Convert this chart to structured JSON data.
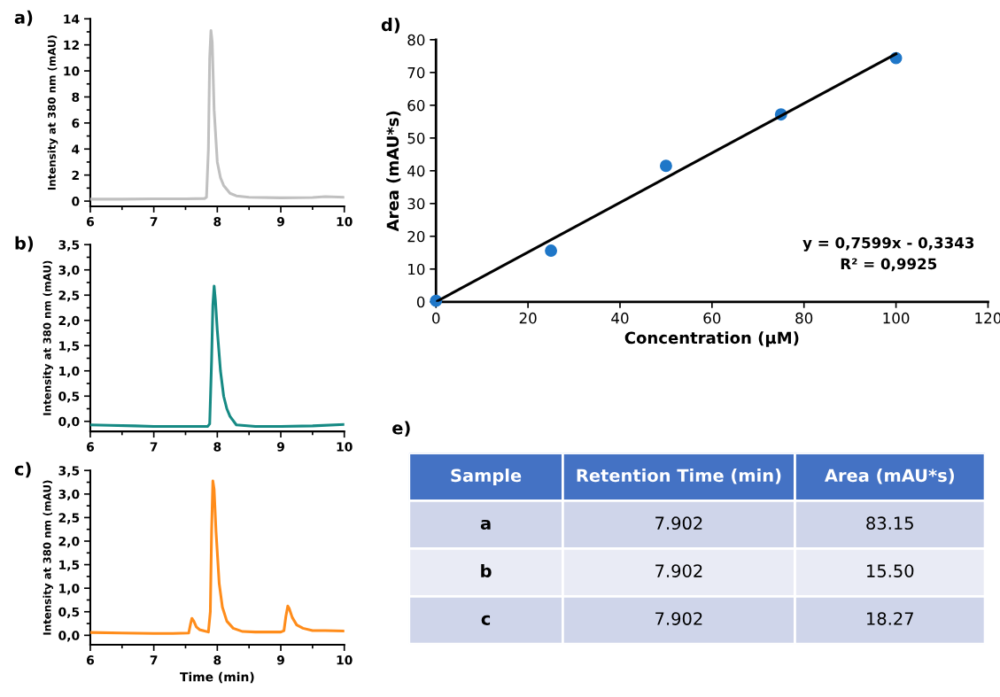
{
  "chart_data": [
    {
      "type": "line",
      "title": "a)",
      "ylabel": "Intensity at 380 nm (mAU)",
      "xlim": [
        6,
        10
      ],
      "ylim": [
        -0.4,
        14
      ],
      "xticks": [
        6,
        7,
        8,
        9,
        10
      ],
      "yticks": [
        0,
        2,
        4,
        6,
        8,
        10,
        12,
        14
      ],
      "series": [
        {
          "color": "#c0c0c0",
          "x": [
            6,
            6.5,
            7,
            7.5,
            7.8,
            7.83,
            7.86,
            7.88,
            7.9,
            7.92,
            7.95,
            8.0,
            8.05,
            8.1,
            8.2,
            8.3,
            8.5,
            9,
            9.5,
            9.7,
            10
          ],
          "values": [
            0.15,
            0.15,
            0.17,
            0.18,
            0.2,
            0.3,
            4,
            11,
            13.1,
            12.2,
            7,
            3,
            1.8,
            1.2,
            0.6,
            0.4,
            0.3,
            0.25,
            0.28,
            0.35,
            0.3
          ]
        }
      ]
    },
    {
      "type": "line",
      "title": "b)",
      "ylabel": "Intensity at 380 nm (mAU)",
      "xlim": [
        6,
        10
      ],
      "ylim": [
        -0.2,
        3.5
      ],
      "xticks": [
        6,
        7,
        8,
        9,
        10
      ],
      "yticks": [
        {
          "value": 0,
          "label": "0,0"
        },
        {
          "value": 0.5,
          "label": "0,5"
        },
        {
          "value": 1,
          "label": "1,0"
        },
        {
          "value": 1.5,
          "label": "1,5"
        },
        {
          "value": 2,
          "label": "2,0"
        },
        {
          "value": 2.5,
          "label": "2,5"
        },
        {
          "value": 3,
          "label": "3,0"
        },
        {
          "value": 3.5,
          "label": "3,5"
        }
      ],
      "series": [
        {
          "color": "#168a84",
          "x": [
            6,
            6.3,
            6.7,
            7,
            7.5,
            7.85,
            7.88,
            7.91,
            7.93,
            7.95,
            7.97,
            8.0,
            8.05,
            8.1,
            8.15,
            8.2,
            8.3,
            8.6,
            9,
            9.5,
            10
          ],
          "values": [
            -0.07,
            -0.08,
            -0.09,
            -0.1,
            -0.1,
            -0.1,
            -0.05,
            1.2,
            2.3,
            2.68,
            2.4,
            1.8,
            1.0,
            0.5,
            0.25,
            0.1,
            -0.07,
            -0.1,
            -0.1,
            -0.09,
            -0.06
          ]
        }
      ]
    },
    {
      "type": "line",
      "title": "c)",
      "xlabel": "Time (min)",
      "ylabel": "Intensity at 380 nm (mAU)",
      "xlim": [
        6,
        10
      ],
      "ylim": [
        -0.2,
        3.5
      ],
      "xticks": [
        6,
        7,
        8,
        9,
        10
      ],
      "yticks": [
        {
          "value": 0,
          "label": "0,0"
        },
        {
          "value": 0.5,
          "label": "0,5"
        },
        {
          "value": 1,
          "label": "1,0"
        },
        {
          "value": 1.5,
          "label": "1,5"
        },
        {
          "value": 2,
          "label": "2,0"
        },
        {
          "value": 2.5,
          "label": "2,5"
        },
        {
          "value": 3,
          "label": "3,0"
        },
        {
          "value": 3.5,
          "label": "3,5"
        }
      ],
      "series": [
        {
          "color": "#ff8c1a",
          "x": [
            6,
            6.5,
            7,
            7.3,
            7.55,
            7.58,
            7.6,
            7.63,
            7.67,
            7.72,
            7.8,
            7.86,
            7.89,
            7.91,
            7.93,
            7.95,
            7.98,
            8.03,
            8.08,
            8.15,
            8.25,
            8.4,
            8.6,
            9,
            9.05,
            9.08,
            9.11,
            9.13,
            9.18,
            9.25,
            9.35,
            9.5,
            9.7,
            10
          ],
          "values": [
            0.06,
            0.05,
            0.04,
            0.04,
            0.05,
            0.25,
            0.36,
            0.3,
            0.18,
            0.12,
            0.09,
            0.07,
            0.5,
            2.2,
            3.28,
            3.1,
            2.2,
            1.1,
            0.6,
            0.3,
            0.15,
            0.08,
            0.07,
            0.07,
            0.1,
            0.4,
            0.62,
            0.58,
            0.38,
            0.22,
            0.15,
            0.1,
            0.1,
            0.09
          ]
        }
      ]
    },
    {
      "type": "scatter",
      "title": "d)",
      "xlabel": "Concentration (μM)",
      "ylabel": "Area (mAU*s)",
      "xlim": [
        0,
        120
      ],
      "ylim": [
        0,
        80
      ],
      "xticks": [
        0,
        20,
        40,
        60,
        80,
        100,
        120
      ],
      "yticks": [
        0,
        10,
        20,
        30,
        40,
        50,
        60,
        70,
        80
      ],
      "annotations": [
        "y = 0,7599x - 0,3343",
        "R² = 0,9925"
      ],
      "series": [
        {
          "type": "scatter",
          "marker": "circle",
          "color": "#1f77c8",
          "x": [
            0,
            25,
            50,
            75,
            100
          ],
          "values": [
            0.3,
            15.6,
            41.5,
            57.2,
            74.4
          ]
        },
        {
          "type": "line",
          "color": "#000000",
          "x": [
            0,
            100
          ],
          "values": [
            0,
            75.7
          ]
        }
      ]
    },
    {
      "type": "other",
      "title": "e)",
      "categories": [
        "Sample",
        "Retention Time (min)",
        "Area (mAU*s)"
      ],
      "cell_labels": [
        [
          "a",
          "7.902",
          "83.15"
        ],
        [
          "b",
          "7.902",
          "15.50"
        ],
        [
          "c",
          "7.902",
          "18.27"
        ]
      ]
    }
  ]
}
